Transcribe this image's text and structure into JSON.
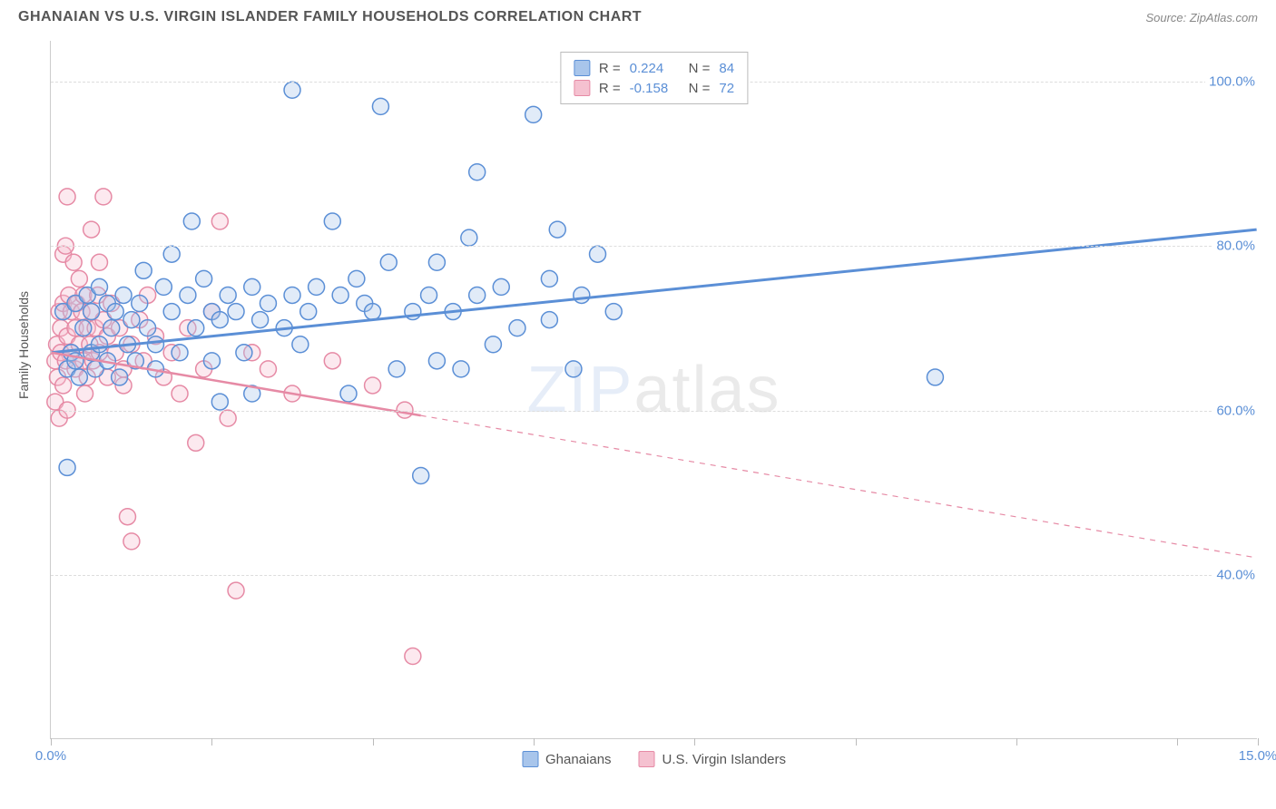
{
  "header": {
    "title": "GHANAIAN VS U.S. VIRGIN ISLANDER FAMILY HOUSEHOLDS CORRELATION CHART",
    "source": "Source: ZipAtlas.com"
  },
  "ylabel": "Family Households",
  "watermark_zip": "ZIP",
  "watermark_atlas": "atlas",
  "chart": {
    "type": "scatter",
    "xlim": [
      0,
      15
    ],
    "ylim": [
      20,
      105
    ],
    "xticks": [
      0,
      2,
      4,
      6,
      8,
      10,
      12,
      14,
      15
    ],
    "xtick_labels_shown": {
      "0": "0.0%",
      "15": "15.0%"
    },
    "yticks": [
      40,
      60,
      80,
      100
    ],
    "ytick_labels": {
      "40": "40.0%",
      "60": "60.0%",
      "80": "80.0%",
      "100": "100.0%"
    },
    "background_color": "#ffffff",
    "grid_color": "#dddddd",
    "axis_color": "#cccccc",
    "marker_radius": 9,
    "marker_stroke_width": 1.5,
    "marker_fill_opacity": 0.35,
    "series": [
      {
        "name": "Ghanaians",
        "color_stroke": "#5b8fd6",
        "color_fill": "#a8c5eb",
        "R": "0.224",
        "N": "84",
        "regression": {
          "x1": 0,
          "y1": 67,
          "x2": 15,
          "y2": 82,
          "solid_until_x": 15,
          "stroke_width": 3
        },
        "points": [
          [
            0.2,
            53
          ],
          [
            0.15,
            72
          ],
          [
            0.2,
            65
          ],
          [
            0.25,
            67
          ],
          [
            0.3,
            66
          ],
          [
            0.3,
            73
          ],
          [
            0.35,
            64
          ],
          [
            0.4,
            70
          ],
          [
            0.45,
            74
          ],
          [
            0.5,
            67
          ],
          [
            0.5,
            72
          ],
          [
            0.55,
            65
          ],
          [
            0.6,
            68
          ],
          [
            0.6,
            75
          ],
          [
            0.7,
            73
          ],
          [
            0.7,
            66
          ],
          [
            0.75,
            70
          ],
          [
            0.8,
            72
          ],
          [
            0.85,
            64
          ],
          [
            0.9,
            74
          ],
          [
            0.95,
            68
          ],
          [
            1.0,
            71
          ],
          [
            1.05,
            66
          ],
          [
            1.1,
            73
          ],
          [
            1.15,
            77
          ],
          [
            1.2,
            70
          ],
          [
            1.3,
            68
          ],
          [
            1.3,
            65
          ],
          [
            1.4,
            75
          ],
          [
            1.5,
            72
          ],
          [
            1.5,
            79
          ],
          [
            1.6,
            67
          ],
          [
            1.7,
            74
          ],
          [
            1.75,
            83
          ],
          [
            1.8,
            70
          ],
          [
            1.9,
            76
          ],
          [
            2.0,
            72
          ],
          [
            2.0,
            66
          ],
          [
            2.1,
            71
          ],
          [
            2.1,
            61
          ],
          [
            2.2,
            74
          ],
          [
            2.3,
            72
          ],
          [
            2.4,
            67
          ],
          [
            2.5,
            75
          ],
          [
            2.5,
            62
          ],
          [
            2.6,
            71
          ],
          [
            2.7,
            73
          ],
          [
            2.9,
            70
          ],
          [
            3.0,
            74
          ],
          [
            3.0,
            99
          ],
          [
            3.1,
            68
          ],
          [
            3.2,
            72
          ],
          [
            3.3,
            75
          ],
          [
            3.5,
            83
          ],
          [
            3.6,
            74
          ],
          [
            3.7,
            62
          ],
          [
            3.8,
            76
          ],
          [
            3.9,
            73
          ],
          [
            4.0,
            72
          ],
          [
            4.1,
            97
          ],
          [
            4.2,
            78
          ],
          [
            4.3,
            65
          ],
          [
            4.5,
            72
          ],
          [
            4.6,
            52
          ],
          [
            4.7,
            74
          ],
          [
            4.8,
            66
          ],
          [
            4.8,
            78
          ],
          [
            5.0,
            72
          ],
          [
            5.1,
            65
          ],
          [
            5.2,
            81
          ],
          [
            5.3,
            74
          ],
          [
            5.3,
            89
          ],
          [
            5.5,
            68
          ],
          [
            5.6,
            75
          ],
          [
            5.8,
            70
          ],
          [
            6.0,
            96
          ],
          [
            6.2,
            71
          ],
          [
            6.2,
            76
          ],
          [
            6.3,
            82
          ],
          [
            6.5,
            65
          ],
          [
            6.6,
            74
          ],
          [
            6.8,
            79
          ],
          [
            7.0,
            72
          ],
          [
            11.0,
            64
          ]
        ]
      },
      {
        "name": "U.S. Virgin Islanders",
        "color_stroke": "#e68aa5",
        "color_fill": "#f5c1d0",
        "R": "-0.158",
        "N": "72",
        "regression": {
          "x1": 0,
          "y1": 67,
          "x2": 15,
          "y2": 42,
          "solid_until_x": 4.6,
          "stroke_width": 2.5
        },
        "points": [
          [
            0.05,
            61
          ],
          [
            0.05,
            66
          ],
          [
            0.07,
            68
          ],
          [
            0.08,
            64
          ],
          [
            0.1,
            72
          ],
          [
            0.1,
            59
          ],
          [
            0.12,
            67
          ],
          [
            0.12,
            70
          ],
          [
            0.15,
            79
          ],
          [
            0.15,
            63
          ],
          [
            0.15,
            73
          ],
          [
            0.18,
            80
          ],
          [
            0.18,
            66
          ],
          [
            0.2,
            86
          ],
          [
            0.2,
            69
          ],
          [
            0.2,
            60
          ],
          [
            0.22,
            74
          ],
          [
            0.25,
            67
          ],
          [
            0.25,
            72
          ],
          [
            0.28,
            78
          ],
          [
            0.3,
            65
          ],
          [
            0.3,
            70
          ],
          [
            0.32,
            73
          ],
          [
            0.35,
            76
          ],
          [
            0.35,
            68
          ],
          [
            0.38,
            72
          ],
          [
            0.4,
            66
          ],
          [
            0.4,
            74
          ],
          [
            0.42,
            62
          ],
          [
            0.45,
            70
          ],
          [
            0.45,
            64
          ],
          [
            0.48,
            68
          ],
          [
            0.5,
            72
          ],
          [
            0.5,
            82
          ],
          [
            0.52,
            66
          ],
          [
            0.55,
            70
          ],
          [
            0.58,
            74
          ],
          [
            0.6,
            67
          ],
          [
            0.6,
            78
          ],
          [
            0.65,
            71
          ],
          [
            0.65,
            86
          ],
          [
            0.7,
            69
          ],
          [
            0.7,
            64
          ],
          [
            0.75,
            73
          ],
          [
            0.8,
            67
          ],
          [
            0.85,
            70
          ],
          [
            0.9,
            65
          ],
          [
            0.9,
            63
          ],
          [
            0.95,
            47
          ],
          [
            1.0,
            68
          ],
          [
            1.0,
            44
          ],
          [
            1.1,
            71
          ],
          [
            1.15,
            66
          ],
          [
            1.2,
            74
          ],
          [
            1.3,
            69
          ],
          [
            1.4,
            64
          ],
          [
            1.5,
            67
          ],
          [
            1.6,
            62
          ],
          [
            1.7,
            70
          ],
          [
            1.8,
            56
          ],
          [
            1.9,
            65
          ],
          [
            2.0,
            72
          ],
          [
            2.1,
            83
          ],
          [
            2.2,
            59
          ],
          [
            2.3,
            38
          ],
          [
            2.5,
            67
          ],
          [
            2.7,
            65
          ],
          [
            3.0,
            62
          ],
          [
            3.5,
            66
          ],
          [
            4.0,
            63
          ],
          [
            4.4,
            60
          ],
          [
            4.5,
            30
          ]
        ]
      }
    ]
  },
  "legend_bottom": [
    {
      "label": "Ghanaians",
      "fill": "#a8c5eb",
      "stroke": "#5b8fd6"
    },
    {
      "label": "U.S. Virgin Islanders",
      "fill": "#f5c1d0",
      "stroke": "#e68aa5"
    }
  ],
  "colors": {
    "tick_label": "#5b8fd6",
    "text": "#555555"
  }
}
